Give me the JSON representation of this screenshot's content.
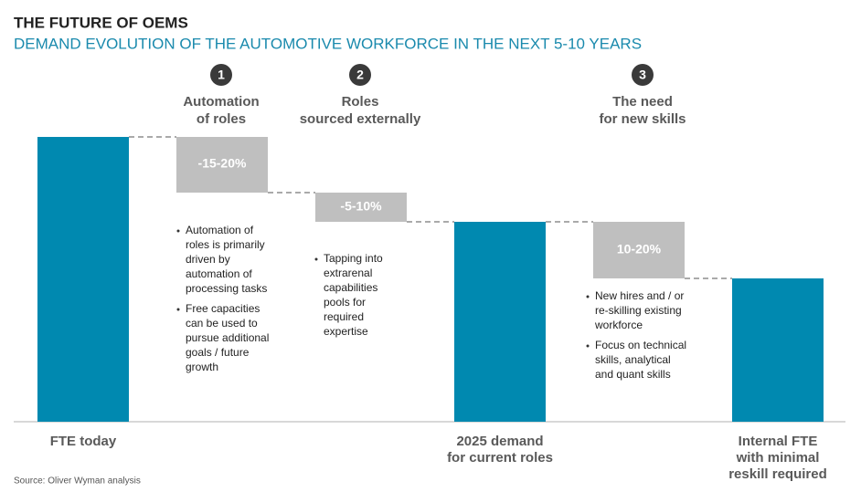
{
  "header": {
    "title": "THE FUTURE OF OEMS",
    "subtitle": "DEMAND EVOLUTION OF THE AUTOMOTIVE WORKFORCE IN THE NEXT 5-10 YEARS"
  },
  "steps": [
    {
      "number": "1",
      "heading": [
        "Automation",
        "of roles"
      ],
      "change": "-15-20%",
      "bullets": [
        [
          "Automation of",
          "roles is primarily",
          "driven  by",
          "automation of",
          "processing tasks"
        ],
        [
          "Free capacities",
          "can be used to",
          "pursue additional",
          "goals / future",
          "growth"
        ]
      ]
    },
    {
      "number": "2",
      "heading": [
        "Roles",
        "sourced externally"
      ],
      "change": "-5-10%",
      "bullets": [
        [
          "Tapping into",
          "extrarenal",
          "capabilities",
          "pools for",
          "required",
          "expertise"
        ]
      ]
    },
    {
      "number": "3",
      "heading": [
        "The need",
        "for new skills"
      ],
      "change": "10-20%",
      "bullets": [
        [
          "New hires and / or",
          "re-skilling existing",
          "workforce"
        ],
        [
          "Focus on technical",
          "skills, analytical",
          "and quant skills"
        ]
      ]
    }
  ],
  "totals": [
    [
      "FTE today"
    ],
    [
      "2025 demand",
      "for current roles"
    ],
    [
      "Internal FTE",
      "with minimal",
      "reskill required"
    ]
  ],
  "source": "Source: Oliver Wyman analysis"
}
